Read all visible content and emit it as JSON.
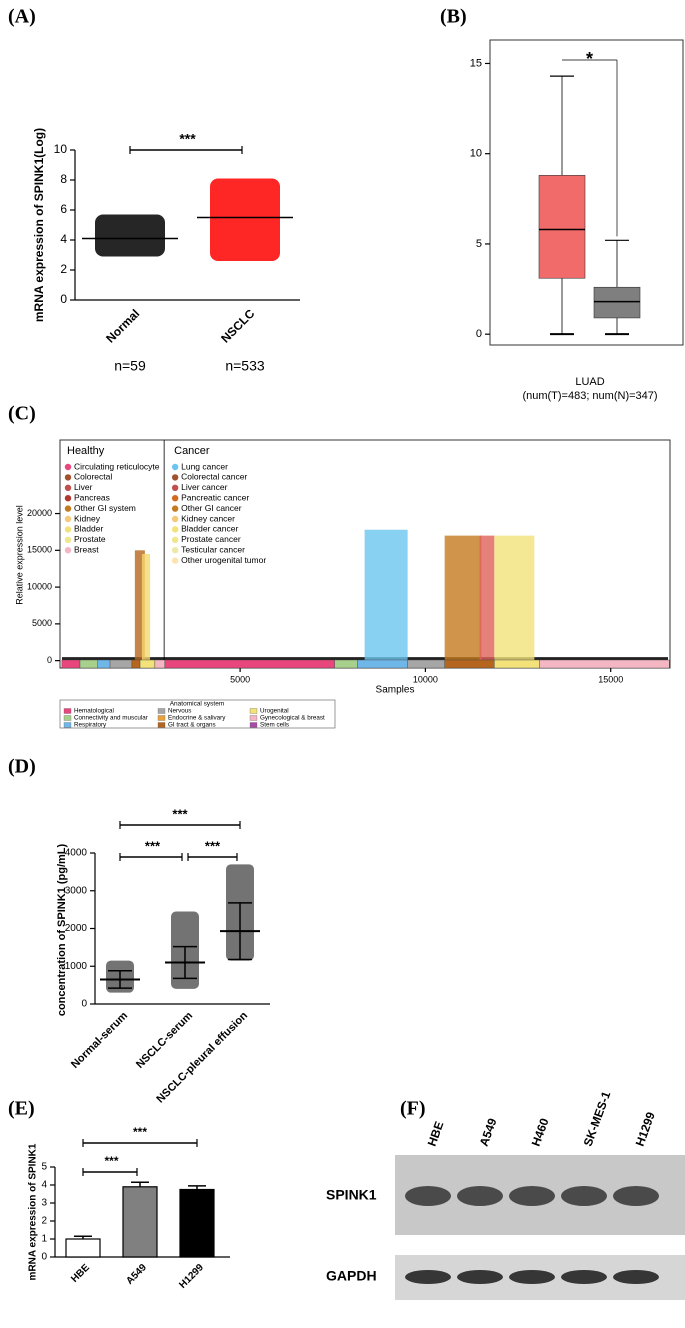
{
  "panel_labels": [
    "(A)",
    "(B)",
    "(C)",
    "(D)",
    "(E)",
    "(F)"
  ],
  "chart_data": [
    {
      "type": "dot-summary",
      "y_label": "mRNA expression of SPINK1(Log)",
      "categories": [
        "Normal",
        "NSCLC"
      ],
      "counts": [
        "n=59",
        "n=533"
      ],
      "mean": [
        4.1,
        5.5
      ],
      "min": [
        2.9,
        2.6
      ],
      "max": [
        5.7,
        8.1
      ],
      "colors": [
        "#000000",
        "#ff0000"
      ],
      "ylim": [
        0,
        10
      ],
      "yticks": [
        0,
        2,
        4,
        6,
        8,
        10
      ],
      "significance": [
        {
          "label": "***",
          "pair": [
            0,
            1
          ]
        }
      ]
    },
    {
      "type": "box",
      "x_label": "LUAD",
      "subtitle": "(num(T)=483; num(N)=347)",
      "boxes": [
        {
          "color": "#f26b6b",
          "min": 0,
          "q1": 3.1,
          "median": 5.8,
          "q3": 8.8,
          "max": 14.3
        },
        {
          "color": "#7f7f7f",
          "min": 0,
          "q1": 0.9,
          "median": 1.8,
          "q3": 2.6,
          "max": 5.2
        }
      ],
      "ylim": [
        -0.6,
        16.3
      ],
      "yticks": [
        0,
        5,
        10,
        15
      ],
      "significance": {
        "label": "*",
        "color": "#ff0000"
      }
    },
    {
      "type": "expression-scatter",
      "y_label": "Relative expression level",
      "x_label": "Samples",
      "xlim": [
        140,
        16600
      ],
      "ylim": [
        -1000,
        30000
      ],
      "xticks": [
        5000,
        10000,
        15000
      ],
      "yticks": [
        0,
        5000,
        10000,
        15000,
        20000
      ],
      "divider": 2950,
      "groups": [
        {
          "title": "Healthy",
          "items": [
            {
              "name": "Circulating reticulocyte",
              "color": "#e8467c"
            },
            {
              "name": "Colorectal",
              "color": "#a0522d"
            },
            {
              "name": "Liver",
              "color": "#c0504d"
            },
            {
              "name": "Pancreas",
              "color": "#b03a2e"
            },
            {
              "name": "Other GI system",
              "color": "#c47a1e"
            },
            {
              "name": "Kidney",
              "color": "#f5c87a"
            },
            {
              "name": "Bladder",
              "color": "#f3e27a"
            },
            {
              "name": "Prostate",
              "color": "#f0e68c"
            },
            {
              "name": "Breast",
              "color": "#f4b6c2"
            }
          ]
        },
        {
          "title": "Cancer",
          "items": [
            {
              "name": "Lung cancer",
              "color": "#6cc5ef"
            },
            {
              "name": "Colorectal cancer",
              "color": "#a0522d"
            },
            {
              "name": "Liver cancer",
              "color": "#c0504d"
            },
            {
              "name": "Pancreatic cancer",
              "color": "#d2691e"
            },
            {
              "name": "Other GI cancer",
              "color": "#c47a1e"
            },
            {
              "name": "Kidney cancer",
              "color": "#f5c87a"
            },
            {
              "name": "Bladder cancer",
              "color": "#f3e27a"
            },
            {
              "name": "Prostate cancer",
              "color": "#f0e68c"
            },
            {
              "name": "Testicular cancer",
              "color": "#eee8aa"
            },
            {
              "name": "Other urogenital tumor",
              "color": "#fde3b0"
            }
          ]
        }
      ],
      "clusters": [
        {
          "color": "#b5651d",
          "x": [
            2160,
            2430
          ],
          "ymax": 15000
        },
        {
          "color": "#f5d76e",
          "x": [
            2350,
            2570
          ],
          "ymax": 14500
        },
        {
          "color": "#6cc5ef",
          "x": [
            8360,
            9520
          ],
          "ymax": 17800
        },
        {
          "color": "#c47a1e",
          "x": [
            10520,
            11510
          ],
          "ymax": 17000
        },
        {
          "color": "#e0605a",
          "x": [
            11460,
            11860
          ],
          "ymax": 17000
        },
        {
          "color": "#f3e27a",
          "x": [
            11860,
            12940
          ],
          "ymax": 17000
        }
      ],
      "system_legend": {
        "title": "Anatomical system",
        "items": [
          {
            "name": "Hematological",
            "color": "#e8467c"
          },
          {
            "name": "Connectivity and muscular",
            "color": "#a8d08d"
          },
          {
            "name": "Respiratory",
            "color": "#6fb7e9"
          },
          {
            "name": "Nervous",
            "color": "#a6a6a6"
          },
          {
            "name": "Endocrine & salivary",
            "color": "#e6a23c"
          },
          {
            "name": "GI tract & organs",
            "color": "#b5651d"
          },
          {
            "name": "Urogenital",
            "color": "#f3e27a"
          },
          {
            "name": "Gynecological & breast",
            "color": "#f4b6c2"
          },
          {
            "name": "Stem cells",
            "color": "#a64ca6"
          }
        ]
      },
      "system_bar": [
        {
          "color": "#e8467c",
          "x": [
            190,
            680
          ]
        },
        {
          "color": "#a8d08d",
          "x": [
            680,
            1160
          ]
        },
        {
          "color": "#6fb7e9",
          "x": [
            1160,
            1490
          ]
        },
        {
          "color": "#a6a6a6",
          "x": [
            1490,
            2080
          ]
        },
        {
          "color": "#b5651d",
          "x": [
            2080,
            2300
          ]
        },
        {
          "color": "#f3e27a",
          "x": [
            2300,
            2700
          ]
        },
        {
          "color": "#f4b6c2",
          "x": [
            2700,
            2970
          ]
        },
        {
          "color": "#e8467c",
          "x": [
            2970,
            7550
          ]
        },
        {
          "color": "#a8d08d",
          "x": [
            7550,
            8170
          ]
        },
        {
          "color": "#6fb7e9",
          "x": [
            8170,
            9520
          ]
        },
        {
          "color": "#a6a6a6",
          "x": [
            9520,
            10520
          ]
        },
        {
          "color": "#b5651d",
          "x": [
            10520,
            11860
          ]
        },
        {
          "color": "#f3e27a",
          "x": [
            11860,
            13080
          ]
        },
        {
          "color": "#f4b6c2",
          "x": [
            13080,
            16580
          ]
        }
      ]
    },
    {
      "type": "dot-mean-sd",
      "y_label": "concentration of SPINK1 (pg/mL)",
      "categories": [
        "Normal-serum",
        "NSCLC-serum",
        "NSCLC-pleural effusion"
      ],
      "mean": [
        650,
        1100,
        1930
      ],
      "sd": [
        230,
        420,
        750
      ],
      "min": [
        300,
        400,
        1150
      ],
      "max": [
        1150,
        2450,
        3700
      ],
      "ylim": [
        0,
        4000
      ],
      "yticks": [
        0,
        1000,
        2000,
        3000,
        4000
      ],
      "significance": [
        {
          "label": "***",
          "pair": [
            0,
            2
          ]
        },
        {
          "label": "***",
          "pair": [
            0,
            1
          ]
        },
        {
          "label": "***",
          "pair": [
            1,
            2
          ]
        }
      ]
    },
    {
      "type": "bar",
      "y_label": "mRNA expression of SPINK1",
      "categories": [
        "HBE",
        "A549",
        "H1299"
      ],
      "values": [
        1.0,
        3.9,
        3.75
      ],
      "errors": [
        0.15,
        0.25,
        0.2
      ],
      "colors": [
        "#ffffff",
        "#808080",
        "#000000"
      ],
      "ylim": [
        0,
        5
      ],
      "yticks": [
        0,
        1,
        2,
        3,
        4,
        5
      ],
      "significance": [
        {
          "label": "***",
          "pair": [
            0,
            2
          ]
        },
        {
          "label": "***",
          "pair": [
            0,
            1
          ]
        }
      ]
    }
  ],
  "blot": {
    "lanes": [
      "HBE",
      "A549",
      "H460",
      "SK-MES-1",
      "H1299"
    ],
    "rows": [
      "SPINK1",
      "GAPDH"
    ]
  }
}
